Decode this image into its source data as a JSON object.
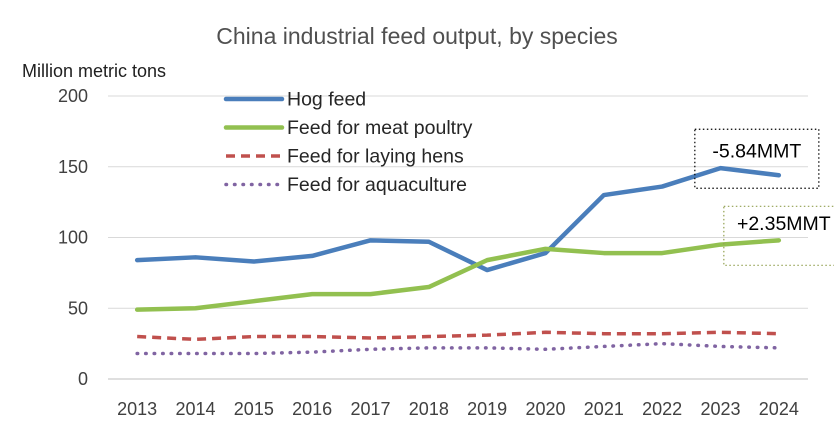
{
  "chart_data": {
    "type": "line",
    "title": "China industrial feed output, by species",
    "ylabel": "Million metric tons",
    "xlabel": "",
    "ylim": [
      0,
      200
    ],
    "yticks": [
      0,
      50,
      100,
      150,
      200
    ],
    "grid": true,
    "legend_position": "top-left",
    "categories": [
      "2013",
      "2014",
      "2015",
      "2016",
      "2017",
      "2018",
      "2019",
      "2020",
      "2021",
      "2022",
      "2023",
      "2024"
    ],
    "series": [
      {
        "name": "Hog feed",
        "color": "#4a7ebb",
        "style": "solid",
        "values": [
          84,
          86,
          83,
          87,
          98,
          97,
          77,
          89,
          130,
          136,
          149,
          144
        ]
      },
      {
        "name": "Feed for meat poultry",
        "color": "#92c050",
        "style": "solid",
        "values": [
          49,
          50,
          55,
          60,
          60,
          65,
          84,
          92,
          89,
          89,
          95,
          98
        ]
      },
      {
        "name": "Feed for laying hens",
        "color": "#c0504d",
        "style": "dashed",
        "values": [
          30,
          28,
          30,
          30,
          29,
          30,
          31,
          33,
          32,
          32,
          33,
          32
        ]
      },
      {
        "name": "Feed for aquaculture",
        "color": "#8064a2",
        "style": "dotted",
        "values": [
          18,
          18,
          18,
          19,
          21,
          22,
          22,
          21,
          23,
          25,
          23,
          22
        ]
      }
    ],
    "annotations": [
      {
        "text": "-5.84MMT",
        "series": "Hog feed",
        "border_color": "#000000",
        "border_style": "dotted"
      },
      {
        "text": "+2.35MMT",
        "series": "Feed for meat poultry",
        "border_color": "#92a050",
        "border_style": "dotted"
      }
    ]
  }
}
